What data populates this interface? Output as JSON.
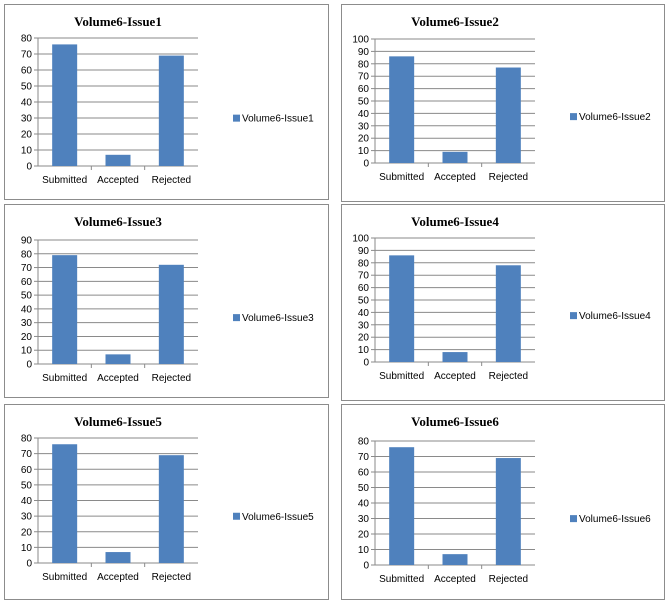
{
  "bar_color": "#4f81bd",
  "chart_data": [
    {
      "type": "bar",
      "title": "Volume6-Issue1",
      "categories": [
        "Submitted",
        "Accepted",
        "Rejected"
      ],
      "series": [
        {
          "name": "Volume6-Issue1",
          "values": [
            76,
            7,
            69
          ]
        }
      ],
      "ylim": [
        0,
        80
      ],
      "ytick_step": 10,
      "yticks": [
        "0",
        "10",
        "20",
        "30",
        "40",
        "50",
        "60",
        "70",
        "80"
      ],
      "grid": true,
      "legend": "right"
    },
    {
      "type": "bar",
      "title": "Volume6-Issue2",
      "categories": [
        "Submitted",
        "Accepted",
        "Rejected"
      ],
      "series": [
        {
          "name": "Volume6-Issue2",
          "values": [
            86,
            9,
            77
          ]
        }
      ],
      "ylim": [
        0,
        100
      ],
      "ytick_step": 10,
      "yticks": [
        "0",
        "10",
        "20",
        "30",
        "40",
        "50",
        "60",
        "70",
        "80",
        "90",
        "100"
      ],
      "grid": true,
      "legend": "right"
    },
    {
      "type": "bar",
      "title": "Volume6-Issue3",
      "categories": [
        "Submitted",
        "Accepted",
        "Rejected"
      ],
      "series": [
        {
          "name": "Volume6-Issue3",
          "values": [
            79,
            7,
            72
          ]
        }
      ],
      "ylim": [
        0,
        90
      ],
      "ytick_step": 10,
      "yticks": [
        "0",
        "10",
        "20",
        "30",
        "40",
        "50",
        "60",
        "70",
        "80",
        "90"
      ],
      "grid": true,
      "legend": "right"
    },
    {
      "type": "bar",
      "title": "Volume6-Issue4",
      "categories": [
        "Submitted",
        "Accepted",
        "Rejected"
      ],
      "series": [
        {
          "name": "Volume6-Issue4",
          "values": [
            86,
            8,
            78
          ]
        }
      ],
      "ylim": [
        0,
        100
      ],
      "ytick_step": 10,
      "yticks": [
        "0",
        "10",
        "20",
        "30",
        "40",
        "50",
        "60",
        "70",
        "80",
        "90",
        "100"
      ],
      "grid": true,
      "legend": "right"
    },
    {
      "type": "bar",
      "title": "Volume6-Issue5",
      "categories": [
        "Submitted",
        "Accepted",
        "Rejected"
      ],
      "series": [
        {
          "name": "Volume6-Issue5",
          "values": [
            76,
            7,
            69
          ]
        }
      ],
      "ylim": [
        0,
        80
      ],
      "ytick_step": 10,
      "yticks": [
        "0",
        "10",
        "20",
        "30",
        "40",
        "50",
        "60",
        "70",
        "80"
      ],
      "grid": true,
      "legend": "right"
    },
    {
      "type": "bar",
      "title": "Volume6-Issue6",
      "categories": [
        "Submitted",
        "Accepted",
        "Rejected"
      ],
      "series": [
        {
          "name": "Volume6-Issue6",
          "values": [
            76,
            7,
            69
          ]
        }
      ],
      "ylim": [
        0,
        80
      ],
      "ytick_step": 10,
      "yticks": [
        "0",
        "10",
        "20",
        "30",
        "40",
        "50",
        "60",
        "70",
        "80"
      ],
      "grid": true,
      "legend": "right"
    }
  ]
}
